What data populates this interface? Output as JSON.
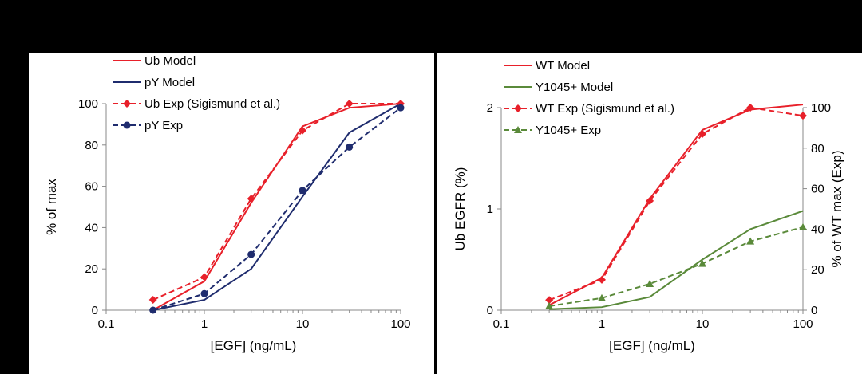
{
  "chart_data": [
    {
      "type": "line",
      "xscale": "log",
      "xlabel": "[EGF] (ng/mL)",
      "ylabel": "% of max",
      "xlim": [
        0.1,
        100
      ],
      "ylim": [
        0,
        100
      ],
      "xticks": [
        "0.1",
        "1",
        "10",
        "100"
      ],
      "yticks": [
        "0",
        "20",
        "40",
        "60",
        "80",
        "100"
      ],
      "legend_position": "top-left",
      "series": [
        {
          "name": "Ub Model",
          "color": "#e8202a",
          "style": "solid",
          "marker": "none",
          "x": [
            0.3,
            1,
            3,
            10,
            30,
            100
          ],
          "y": [
            0,
            14,
            52,
            89,
            98,
            100
          ]
        },
        {
          "name": "pY Model",
          "color": "#1f2c6e",
          "style": "solid",
          "marker": "none",
          "x": [
            0.3,
            1,
            3,
            10,
            30,
            100
          ],
          "y": [
            0,
            5,
            20,
            55,
            86,
            100
          ]
        },
        {
          "name": "Ub Exp (Sigismund et al.)",
          "color": "#e8202a",
          "style": "dashed",
          "marker": "diamond",
          "x": [
            0.3,
            1,
            3,
            10,
            30,
            100
          ],
          "y": [
            5,
            16,
            54,
            87,
            100,
            100
          ]
        },
        {
          "name": "pY Exp",
          "color": "#1f2c6e",
          "style": "dashed",
          "marker": "circle",
          "x": [
            0.3,
            1,
            3,
            10,
            30,
            100
          ],
          "y": [
            0,
            8,
            27,
            58,
            79,
            98
          ]
        }
      ]
    },
    {
      "type": "line",
      "xscale": "log",
      "xlabel": "[EGF] (ng/mL)",
      "ylabel": "Ub EGFR (%)",
      "y2label": "% of WT max (Exp)",
      "xlim": [
        0.1,
        100
      ],
      "ylim": [
        0,
        2
      ],
      "y2lim": [
        0,
        100
      ],
      "xticks": [
        "0.1",
        "1",
        "10",
        "100"
      ],
      "yticks": [
        "0",
        "1",
        "2"
      ],
      "y2ticks": [
        "0",
        "20",
        "40",
        "60",
        "80",
        "100"
      ],
      "legend_position": "top-left",
      "series": [
        {
          "name": "WT Model",
          "color": "#e8202a",
          "style": "solid",
          "marker": "none",
          "axis": "left",
          "x": [
            0.3,
            1,
            3,
            10,
            30,
            100
          ],
          "y": [
            0.05,
            0.32,
            1.1,
            1.78,
            1.98,
            2.03
          ]
        },
        {
          "name": "Y1045+ Model",
          "color": "#5a8a3a",
          "style": "solid",
          "marker": "none",
          "axis": "left",
          "x": [
            0.3,
            1,
            3,
            10,
            30,
            100
          ],
          "y": [
            0.01,
            0.03,
            0.13,
            0.5,
            0.8,
            0.98
          ]
        },
        {
          "name": "WT Exp (Sigismund et al.)",
          "color": "#e8202a",
          "style": "dashed",
          "marker": "diamond",
          "axis": "right",
          "x": [
            0.3,
            1,
            3,
            10,
            30,
            100
          ],
          "y": [
            5,
            15,
            54,
            87,
            100,
            96
          ]
        },
        {
          "name": "Y1045+ Exp",
          "color": "#5a8a3a",
          "style": "dashed",
          "marker": "triangle",
          "axis": "right",
          "x": [
            0.3,
            1,
            3,
            10,
            30,
            100
          ],
          "y": [
            2,
            6,
            13,
            23,
            34,
            41
          ]
        }
      ]
    }
  ]
}
